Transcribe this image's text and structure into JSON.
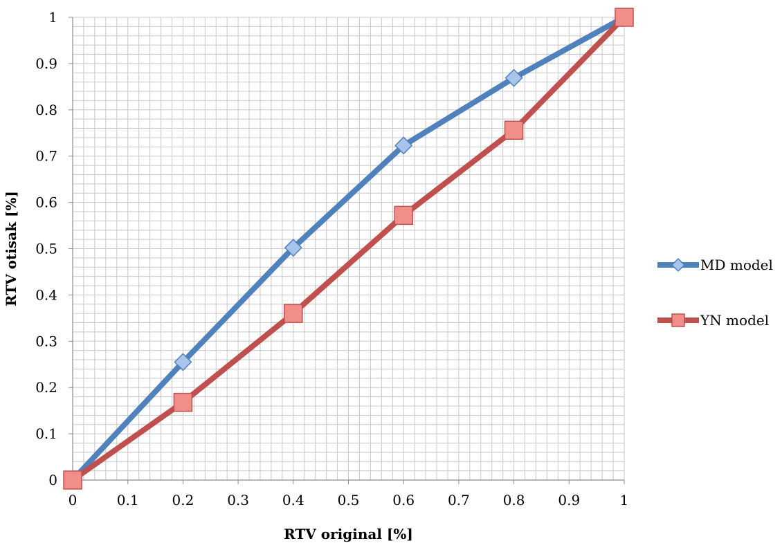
{
  "chart_data": {
    "type": "line",
    "xlabel": "RTV original [%]",
    "ylabel": "RTV otisak [%]",
    "xlim": [
      0,
      1
    ],
    "ylim": [
      0,
      1
    ],
    "x_ticks": [
      "0",
      "0.1",
      "0.2",
      "0.3",
      "0.4",
      "0.5",
      "0.6",
      "0.7",
      "0.8",
      "0.9",
      "1"
    ],
    "y_ticks": [
      "0",
      "0.1",
      "0.2",
      "0.3",
      "0.4",
      "0.5",
      "0.6",
      "0.7",
      "0.8",
      "0.9",
      "1"
    ],
    "grid": true,
    "legend_position": "right",
    "series": [
      {
        "name": "MD model",
        "color": "#4f81bd",
        "marker": "diamond",
        "x": [
          0,
          0.2,
          0.4,
          0.6,
          0.8,
          1
        ],
        "y": [
          0,
          0.255,
          0.502,
          0.723,
          0.869,
          1
        ]
      },
      {
        "name": "YN model",
        "color": "#c0504d",
        "marker": "square",
        "x": [
          0,
          0.2,
          0.4,
          0.6,
          0.8,
          1
        ],
        "y": [
          0,
          0.168,
          0.36,
          0.572,
          0.756,
          1
        ]
      }
    ]
  }
}
